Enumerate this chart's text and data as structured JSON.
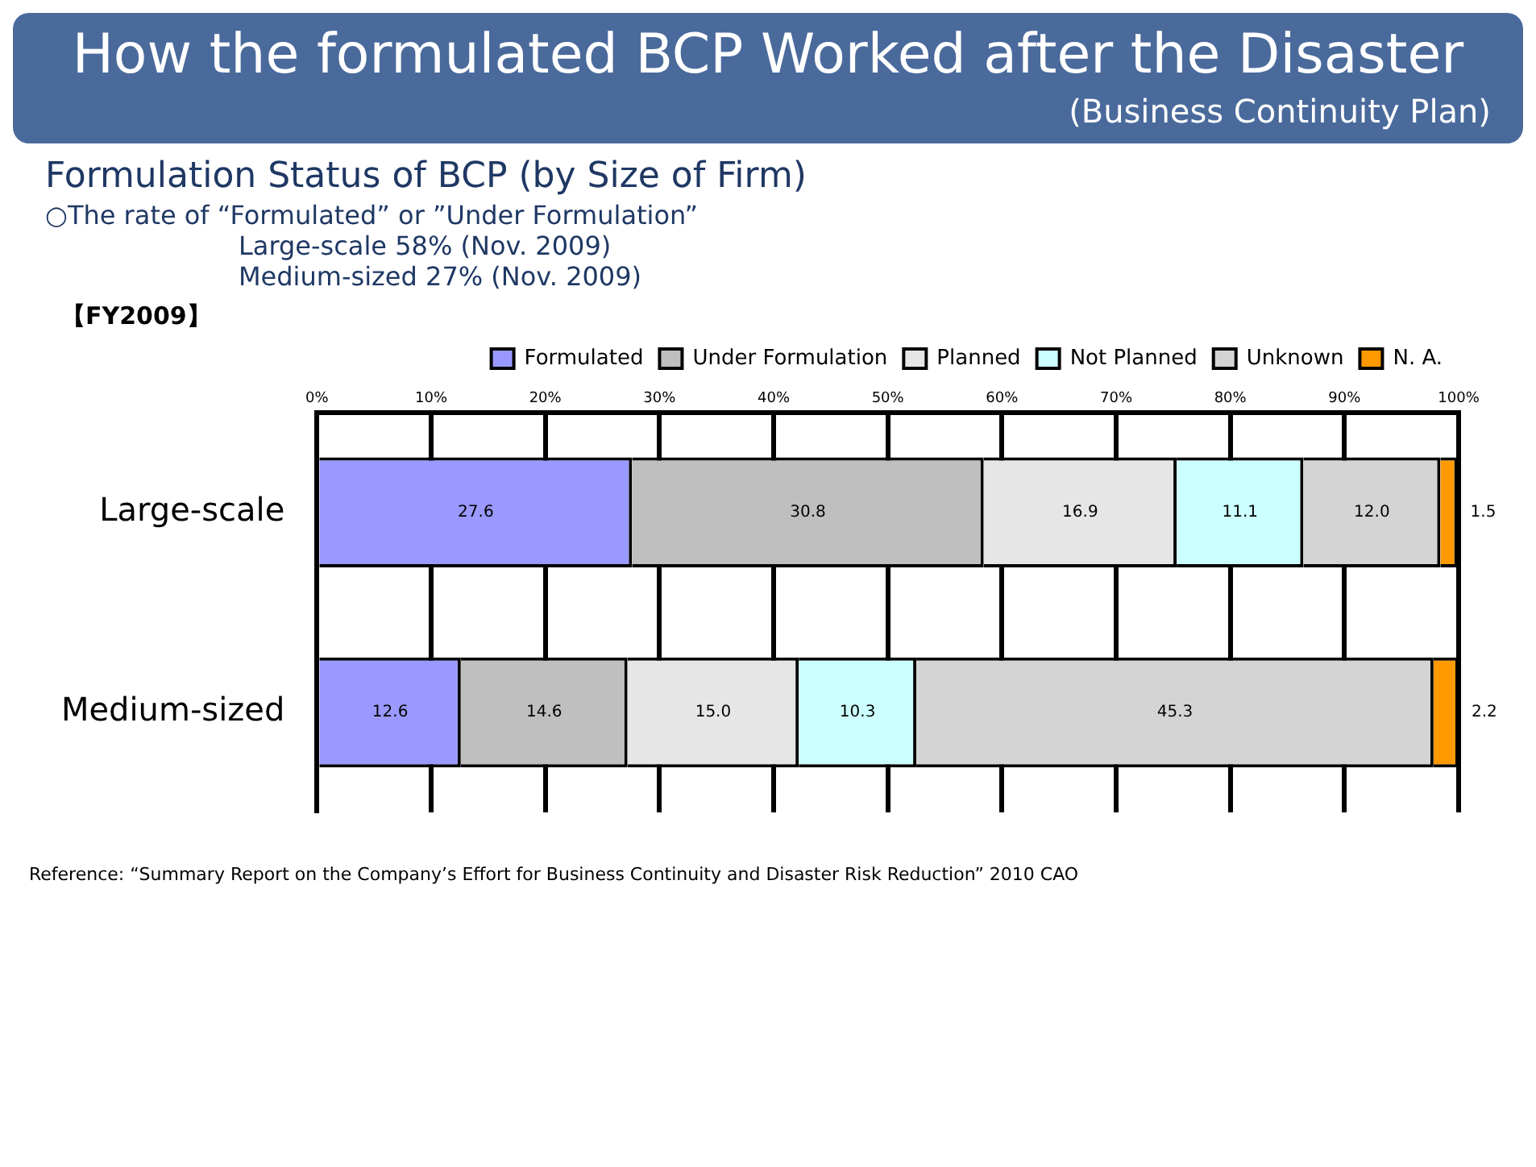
{
  "chart_data": {
    "type": "bar",
    "title": "How the formulated BCP Worked after the Disaster",
    "subtitle": "(Business Continuity Plan)",
    "annotations": [
      "Formulation Status of BCP (by Size of Firm)",
      "○The rate of “Formulated” or ”Under Formulation”",
      "Large-scale 58% (Nov. 2009)",
      "Medium-sized 27% (Nov. 2009)",
      "【FY2009】",
      "Reference: “Summary Report on the Company’s Effort for Business Continuity and Disaster Risk Reduction” 2010 CAO"
    ],
    "categories": [
      "Large-scale",
      "Medium-sized"
    ],
    "orientation": "horizontal",
    "stacked": true,
    "series": [
      {
        "name": "Formulated",
        "color": "#9999ff",
        "values": [
          27.6,
          12.6
        ],
        "value_labels": [
          "27.6",
          "12.6"
        ]
      },
      {
        "name": "Under Formulation",
        "color": "#bfbfbf",
        "values": [
          30.8,
          14.6
        ],
        "value_labels": [
          "30.8",
          "14.6"
        ]
      },
      {
        "name": "Planned",
        "color": "#e6e6e6",
        "values": [
          16.9,
          15.0
        ],
        "value_labels": [
          "16.9",
          "15.0"
        ]
      },
      {
        "name": "Not Planned",
        "color": "#ccffff",
        "values": [
          11.1,
          10.3
        ],
        "value_labels": [
          "11.1",
          "10.3"
        ]
      },
      {
        "name": "Unknown",
        "color": "#d4d4d4",
        "values": [
          12.0,
          45.3
        ],
        "value_labels": [
          "12.0",
          "45.3"
        ]
      },
      {
        "name": "N. A.",
        "color": "#ff9900",
        "values": [
          1.5,
          2.2
        ],
        "value_labels": [
          "1.5",
          "2.2"
        ]
      }
    ],
    "xlim": [
      0,
      100
    ],
    "xticks": [
      {
        "value": 0,
        "label": "0%"
      },
      {
        "value": 10,
        "label": "10%"
      },
      {
        "value": 20,
        "label": "20%"
      },
      {
        "value": 30,
        "label": "30%"
      },
      {
        "value": 40,
        "label": "40%"
      },
      {
        "value": 50,
        "label": "50%"
      },
      {
        "value": 60,
        "label": "60%"
      },
      {
        "value": 70,
        "label": "70%"
      },
      {
        "value": 80,
        "label": "80%"
      },
      {
        "value": 90,
        "label": "90%"
      },
      {
        "value": 100,
        "label": "100%"
      }
    ],
    "grid": "x",
    "legend": "top right"
  }
}
